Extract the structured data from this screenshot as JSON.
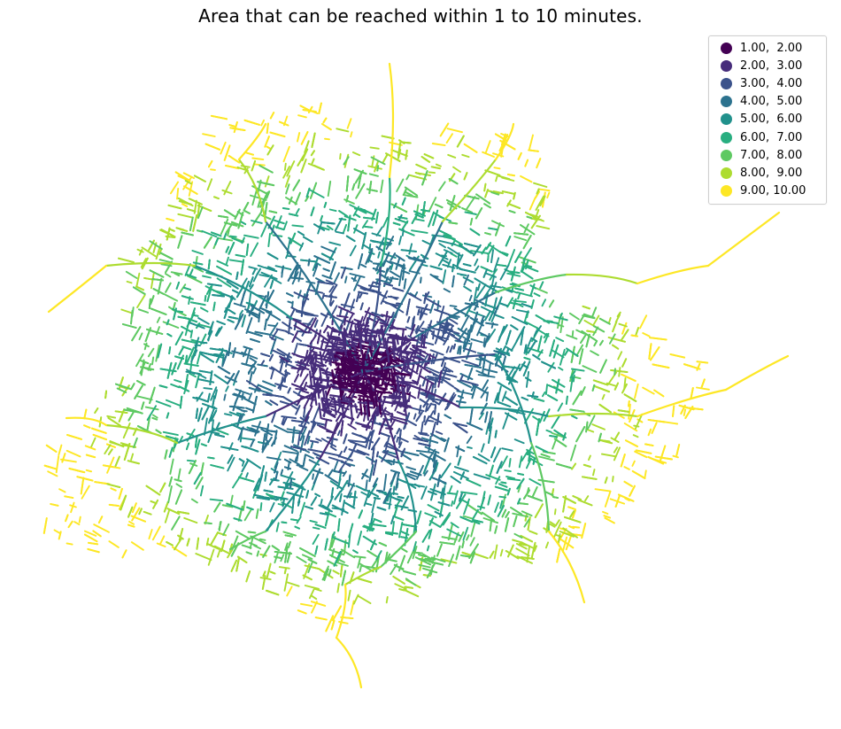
{
  "title": "Area that can be reached within 1 to 10 minutes.",
  "legend": {
    "placement": "top-right",
    "items": [
      {
        "label": "1.00,  2.00",
        "color": "#440154"
      },
      {
        "label": "2.00,  3.00",
        "color": "#472d7b"
      },
      {
        "label": "3.00,  4.00",
        "color": "#3b528b"
      },
      {
        "label": "4.00,  5.00",
        "color": "#2c728e"
      },
      {
        "label": "5.00,  6.00",
        "color": "#21918c"
      },
      {
        "label": "6.00,  7.00",
        "color": "#28ae80"
      },
      {
        "label": "7.00,  8.00",
        "color": "#5ec962"
      },
      {
        "label": "8.00,  9.00",
        "color": "#addc30"
      },
      {
        "label": "9.00, 10.00",
        "color": "#fde725"
      }
    ]
  },
  "map": {
    "type": "isochrone-road-network",
    "colormap": "viridis",
    "background": "#ffffff"
  }
}
